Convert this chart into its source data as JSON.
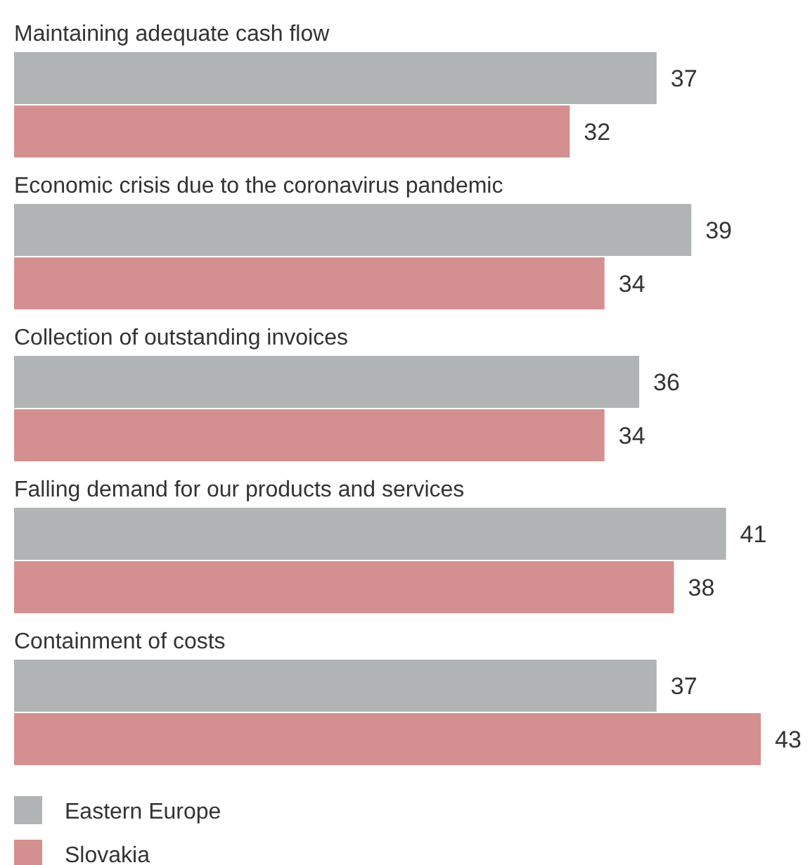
{
  "chart_data": {
    "type": "bar",
    "orientation": "horizontal",
    "categories": [
      "Maintaining adequate cash flow",
      "Economic crisis due to the coronavirus pandemic",
      "Collection of outstanding invoices",
      "Falling demand for our products and services",
      "Containment of costs"
    ],
    "series": [
      {
        "name": "Eastern Europe",
        "color": "#b1b4b5",
        "values": [
          37,
          39,
          36,
          41,
          37
        ]
      },
      {
        "name": "Slovakia",
        "color": "#d49090",
        "values": [
          32,
          34,
          34,
          38,
          43
        ]
      }
    ],
    "data_labels": true,
    "legend": "bottom"
  }
}
